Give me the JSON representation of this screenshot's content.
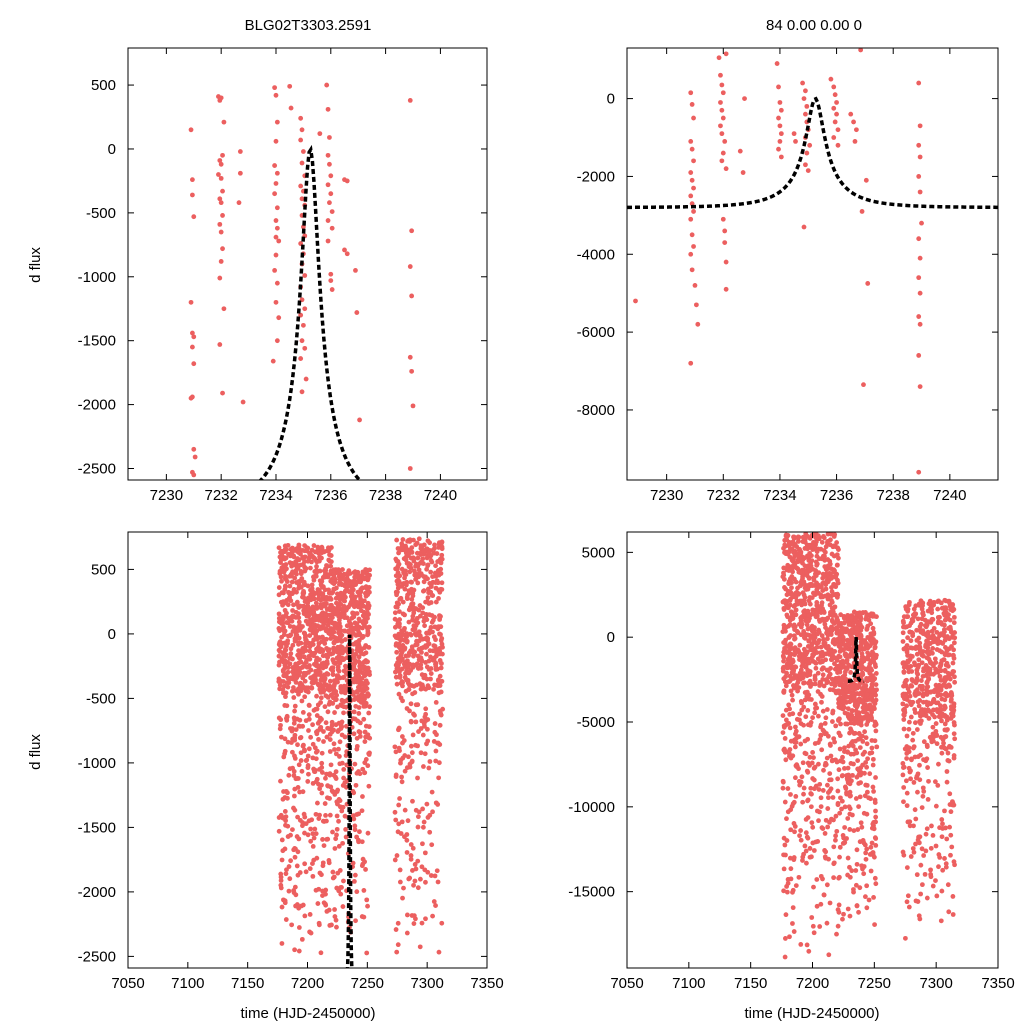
{
  "chart_data": [
    {
      "type": "scatter",
      "title": "BLG02T3303.2591",
      "xlabel": "",
      "ylabel": "d flux",
      "xlim": [
        7228.6,
        7241.7
      ],
      "ylim": [
        -2590,
        790
      ],
      "xticks": [
        7230,
        7232,
        7234,
        7236,
        7238,
        7240
      ],
      "yticks": [
        500,
        0,
        -500,
        -1000,
        -1500,
        -2000,
        -2500
      ],
      "series": [
        {
          "points": [
            [
              7230.9,
              150
            ],
            [
              7230.95,
              -240
            ],
            [
              7230.95,
              -360
            ],
            [
              7231.0,
              -530
            ],
            [
              7230.9,
              -1200
            ],
            [
              7230.95,
              -1440
            ],
            [
              7231.0,
              -1470
            ],
            [
              7230.95,
              -1550
            ],
            [
              7231.0,
              -1680
            ],
            [
              7230.95,
              -1940
            ],
            [
              7230.9,
              -1950
            ],
            [
              7231.0,
              -2350
            ],
            [
              7231.05,
              -2410
            ],
            [
              7230.95,
              -2530
            ],
            [
              7231.0,
              -2550
            ],
            [
              7231.9,
              410
            ],
            [
              7231.95,
              380
            ],
            [
              7232.0,
              400
            ],
            [
              7232.1,
              210
            ],
            [
              7231.95,
              -90
            ],
            [
              7232.05,
              -50
            ],
            [
              7232.0,
              -120
            ],
            [
              7231.9,
              -200
            ],
            [
              7232.0,
              -230
            ],
            [
              7232.05,
              -330
            ],
            [
              7231.95,
              -390
            ],
            [
              7232.0,
              -420
            ],
            [
              7232.05,
              -520
            ],
            [
              7231.95,
              -590
            ],
            [
              7232.0,
              -650
            ],
            [
              7232.05,
              -780
            ],
            [
              7232.0,
              -880
            ],
            [
              7231.95,
              -1010
            ],
            [
              7232.1,
              -1250
            ],
            [
              7231.95,
              -1530
            ],
            [
              7232.05,
              -1910
            ],
            [
              7232.7,
              -20
            ],
            [
              7232.7,
              -190
            ],
            [
              7232.65,
              -420
            ],
            [
              7232.8,
              -1980
            ],
            [
              7233.95,
              480
            ],
            [
              7234.0,
              420
            ],
            [
              7234.05,
              210
            ],
            [
              7234.0,
              60
            ],
            [
              7233.95,
              -130
            ],
            [
              7234.05,
              -190
            ],
            [
              7234.0,
              -270
            ],
            [
              7233.95,
              -350
            ],
            [
              7234.05,
              -460
            ],
            [
              7234.0,
              -560
            ],
            [
              7234.05,
              -620
            ],
            [
              7234.0,
              -690
            ],
            [
              7234.1,
              -720
            ],
            [
              7234.0,
              -830
            ],
            [
              7233.95,
              -950
            ],
            [
              7234.05,
              -1050
            ],
            [
              7234.0,
              -1200
            ],
            [
              7234.1,
              -1320
            ],
            [
              7234.05,
              -1500
            ],
            [
              7233.9,
              -1660
            ],
            [
              7234.5,
              490
            ],
            [
              7234.55,
              320
            ],
            [
              7234.9,
              240
            ],
            [
              7234.95,
              150
            ],
            [
              7234.9,
              70
            ],
            [
              7235.0,
              -20
            ],
            [
              7234.95,
              -110
            ],
            [
              7235.05,
              -210
            ],
            [
              7234.9,
              -290
            ],
            [
              7235.0,
              -330
            ],
            [
              7234.95,
              -390
            ],
            [
              7235.05,
              -440
            ],
            [
              7234.95,
              -520
            ],
            [
              7235.0,
              -610
            ],
            [
              7235.05,
              -680
            ],
            [
              7234.9,
              -740
            ],
            [
              7235.0,
              -820
            ],
            [
              7234.95,
              -900
            ],
            [
              7235.05,
              -990
            ],
            [
              7234.9,
              -1080
            ],
            [
              7234.95,
              -1180
            ],
            [
              7235.05,
              -1250
            ],
            [
              7234.9,
              -1300
            ],
            [
              7235.0,
              -1380
            ],
            [
              7234.95,
              -1500
            ],
            [
              7235.05,
              -1560
            ],
            [
              7234.9,
              -1640
            ],
            [
              7234.95,
              -1900
            ],
            [
              7235.1,
              -1800
            ],
            [
              7235.6,
              120
            ],
            [
              7235.85,
              500
            ],
            [
              7235.9,
              310
            ],
            [
              7235.95,
              90
            ],
            [
              7235.9,
              -50
            ],
            [
              7235.95,
              -120
            ],
            [
              7236.0,
              -210
            ],
            [
              7235.9,
              -280
            ],
            [
              7236.0,
              -350
            ],
            [
              7235.95,
              -420
            ],
            [
              7236.05,
              -490
            ],
            [
              7235.9,
              -560
            ],
            [
              7236.05,
              -620
            ],
            [
              7235.9,
              -720
            ],
            [
              7236.0,
              -980
            ],
            [
              7236.05,
              -1100
            ],
            [
              7236.0,
              -1030
            ],
            [
              7236.5,
              -240
            ],
            [
              7236.6,
              -250
            ],
            [
              7236.5,
              -790
            ],
            [
              7236.6,
              -820
            ],
            [
              7236.9,
              -950
            ],
            [
              7236.95,
              -1280
            ],
            [
              7237.05,
              -2120
            ],
            [
              7238.9,
              380
            ],
            [
              7238.95,
              -640
            ],
            [
              7238.9,
              -920
            ],
            [
              7238.95,
              -1150
            ],
            [
              7238.9,
              -1630
            ],
            [
              7238.95,
              -1740
            ],
            [
              7239.0,
              -2010
            ],
            [
              7238.9,
              -2500
            ]
          ]
        }
      ],
      "model": "dashed black curve"
    },
    {
      "type": "scatter",
      "title": "84  0.00  0.00  0",
      "xlabel": "",
      "ylabel": "",
      "xlim": [
        7228.6,
        7241.7
      ],
      "ylim": [
        -9800,
        1300
      ],
      "xticks": [
        7230,
        7232,
        7234,
        7236,
        7238,
        7240
      ],
      "yticks": [
        0,
        -2000,
        -4000,
        -6000,
        -8000
      ],
      "series": [
        {
          "points": [
            [
              7228.9,
              -5200
            ],
            [
              7230.85,
              150
            ],
            [
              7230.9,
              -150
            ],
            [
              7230.95,
              -500
            ],
            [
              7230.85,
              -1100
            ],
            [
              7230.9,
              -1300
            ],
            [
              7230.95,
              -1600
            ],
            [
              7230.85,
              -1900
            ],
            [
              7230.9,
              -2100
            ],
            [
              7230.95,
              -2300
            ],
            [
              7230.85,
              -2500
            ],
            [
              7230.9,
              -2700
            ],
            [
              7230.95,
              -2900
            ],
            [
              7230.85,
              -3100
            ],
            [
              7230.9,
              -3500
            ],
            [
              7230.95,
              -3800
            ],
            [
              7230.85,
              -4000
            ],
            [
              7230.9,
              -4400
            ],
            [
              7231.0,
              -4800
            ],
            [
              7231.05,
              -5300
            ],
            [
              7231.1,
              -5800
            ],
            [
              7230.85,
              -6800
            ],
            [
              7231.85,
              1050
            ],
            [
              7231.9,
              600
            ],
            [
              7231.95,
              350
            ],
            [
              7232.0,
              150
            ],
            [
              7231.9,
              -100
            ],
            [
              7231.95,
              -300
            ],
            [
              7232.0,
              -500
            ],
            [
              7231.9,
              -700
            ],
            [
              7231.95,
              -900
            ],
            [
              7232.05,
              -1100
            ],
            [
              7232.0,
              -1400
            ],
            [
              7231.95,
              -1600
            ],
            [
              7232.1,
              -1800
            ],
            [
              7232.0,
              -3100
            ],
            [
              7232.05,
              -3400
            ],
            [
              7232.05,
              -3700
            ],
            [
              7232.1,
              -4200
            ],
            [
              7232.1,
              -4900
            ],
            [
              7232.1,
              1150
            ],
            [
              7232.6,
              -1350
            ],
            [
              7232.7,
              -1900
            ],
            [
              7232.75,
              0
            ],
            [
              7233.9,
              900
            ],
            [
              7233.95,
              300
            ],
            [
              7234.0,
              -100
            ],
            [
              7234.05,
              -300
            ],
            [
              7233.95,
              -500
            ],
            [
              7234.0,
              -700
            ],
            [
              7234.05,
              -900
            ],
            [
              7234.0,
              -1100
            ],
            [
              7233.95,
              -1300
            ],
            [
              7234.05,
              -1500
            ],
            [
              7234.5,
              -900
            ],
            [
              7234.55,
              -1100
            ],
            [
              7234.8,
              400
            ],
            [
              7234.9,
              200
            ],
            [
              7234.85,
              0
            ],
            [
              7234.95,
              -200
            ],
            [
              7234.9,
              -400
            ],
            [
              7234.95,
              -600
            ],
            [
              7235.0,
              -800
            ],
            [
              7234.9,
              -1000
            ],
            [
              7235.05,
              -1200
            ],
            [
              7234.95,
              -1400
            ],
            [
              7234.9,
              -1700
            ],
            [
              7235.0,
              -1850
            ],
            [
              7234.85,
              -3300
            ],
            [
              7235.8,
              500
            ],
            [
              7235.9,
              300
            ],
            [
              7235.95,
              100
            ],
            [
              7236.0,
              -100
            ],
            [
              7235.9,
              -250
            ],
            [
              7236.0,
              -400
            ],
            [
              7235.95,
              -600
            ],
            [
              7236.05,
              -800
            ],
            [
              7235.9,
              -1000
            ],
            [
              7236.05,
              -1200
            ],
            [
              7236.5,
              -400
            ],
            [
              7236.6,
              -600
            ],
            [
              7236.7,
              -800
            ],
            [
              7236.65,
              -1100
            ],
            [
              7236.85,
              1250
            ],
            [
              7236.9,
              -2900
            ],
            [
              7236.95,
              -7350
            ],
            [
              7237.1,
              -4750
            ],
            [
              7237.05,
              -2100
            ],
            [
              7238.9,
              400
            ],
            [
              7238.95,
              -700
            ],
            [
              7238.9,
              -1200
            ],
            [
              7238.95,
              -1500
            ],
            [
              7238.9,
              -2000
            ],
            [
              7238.95,
              -2400
            ],
            [
              7239.0,
              -3200
            ],
            [
              7238.9,
              -3600
            ],
            [
              7238.95,
              -4100
            ],
            [
              7238.9,
              -4600
            ],
            [
              7238.95,
              -5000
            ],
            [
              7238.9,
              -5600
            ],
            [
              7238.95,
              -5800
            ],
            [
              7238.9,
              -6600
            ],
            [
              7238.95,
              -7400
            ],
            [
              7238.9,
              -9600
            ]
          ]
        }
      ],
      "model": "dashed black curve"
    },
    {
      "type": "scatter",
      "title": "",
      "xlabel": "time (HJD-2450000)",
      "ylabel": "d flux",
      "xlim": [
        7050,
        7350
      ],
      "ylim": [
        -2590,
        790
      ],
      "xticks": [
        7050,
        7100,
        7150,
        7200,
        7250,
        7300,
        7350
      ],
      "yticks": [
        500,
        0,
        -500,
        -1000,
        -1500,
        -2000,
        -2500
      ],
      "series": [
        {
          "clusters": [
            {
              "xmin": 7176,
              "xmax": 7221,
              "ymin": -2550,
              "ymax": 690,
              "count": 1000
            },
            {
              "xmin": 7221,
              "xmax": 7252,
              "ymin": -2550,
              "ymax": 500,
              "count": 700
            },
            {
              "xmin": 7273,
              "xmax": 7313,
              "ymin": -2550,
              "ymax": 740,
              "count": 640
            }
          ]
        }
      ],
      "model": "dashed black curve"
    },
    {
      "type": "scatter",
      "title": "",
      "xlabel": "time (HJD-2450000)",
      "ylabel": "",
      "xlim": [
        7050,
        7350
      ],
      "ylim": [
        -19500,
        6200
      ],
      "xticks": [
        7050,
        7100,
        7150,
        7200,
        7250,
        7300,
        7350
      ],
      "yticks": [
        5000,
        0,
        -5000,
        -10000,
        -15000
      ],
      "series": [
        {
          "clusters": [
            {
              "xmin": 7176,
              "xmax": 7221,
              "ymin": -19500,
              "ymax": 6100,
              "count": 1000
            },
            {
              "xmin": 7221,
              "xmax": 7252,
              "ymin": -17500,
              "ymax": 1500,
              "count": 700
            },
            {
              "xmin": 7273,
              "xmax": 7315,
              "ymin": -17800,
              "ymax": 2200,
              "count": 640
            }
          ]
        }
      ],
      "model": "dashed black curve"
    }
  ]
}
